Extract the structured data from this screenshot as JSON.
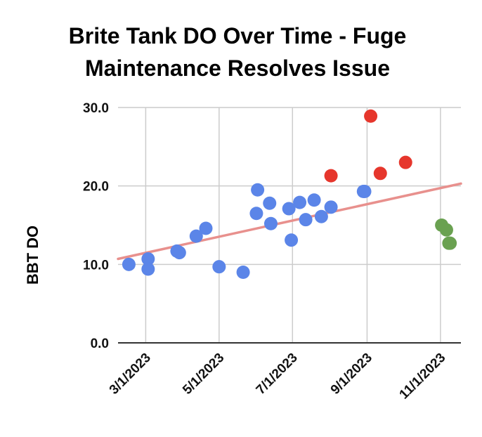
{
  "chart_data": {
    "type": "scatter",
    "title_lines": [
      "Brite Tank DO Over Time - Fuge",
      "Maintenance Resolves Issue"
    ],
    "xlabel": "",
    "ylabel": "BBT DO",
    "ylim": [
      0,
      30
    ],
    "y_ticks": [
      "0.0",
      "10.0",
      "20.0",
      "30.0"
    ],
    "xlim": [
      "2023-02-06",
      "2023-11-18"
    ],
    "x_ticks": [
      {
        "date": "2023-03-01",
        "label": "3/1/2023"
      },
      {
        "date": "2023-05-01",
        "label": "5/1/2023"
      },
      {
        "date": "2023-07-01",
        "label": "7/1/2023"
      },
      {
        "date": "2023-09-01",
        "label": "9/1/2023"
      },
      {
        "date": "2023-11-01",
        "label": "11/1/2023"
      }
    ],
    "grid": true,
    "legend": "none",
    "trendline": {
      "color": "#e8908d",
      "start": {
        "x": "2023-02-06",
        "y": 10.7
      },
      "end": {
        "x": "2023-11-18",
        "y": 20.3
      }
    },
    "series": [
      {
        "color": "#5b85e8",
        "points": [
          {
            "x": "2023-02-15",
            "y": 10.0
          },
          {
            "x": "2023-03-03",
            "y": 10.7
          },
          {
            "x": "2023-03-03",
            "y": 9.4
          },
          {
            "x": "2023-03-27",
            "y": 11.7
          },
          {
            "x": "2023-03-29",
            "y": 11.5
          },
          {
            "x": "2023-04-12",
            "y": 13.6
          },
          {
            "x": "2023-04-20",
            "y": 14.6
          },
          {
            "x": "2023-05-01",
            "y": 9.7
          },
          {
            "x": "2023-05-21",
            "y": 9.0
          },
          {
            "x": "2023-06-01",
            "y": 16.5
          },
          {
            "x": "2023-06-02",
            "y": 19.5
          },
          {
            "x": "2023-06-12",
            "y": 17.8
          },
          {
            "x": "2023-06-13",
            "y": 15.2
          },
          {
            "x": "2023-06-28",
            "y": 17.1
          },
          {
            "x": "2023-06-30",
            "y": 13.1
          },
          {
            "x": "2023-07-07",
            "y": 17.9
          },
          {
            "x": "2023-07-12",
            "y": 15.7
          },
          {
            "x": "2023-07-19",
            "y": 18.2
          },
          {
            "x": "2023-07-25",
            "y": 16.1
          },
          {
            "x": "2023-08-02",
            "y": 17.3
          },
          {
            "x": "2023-08-29",
            "y": 19.3
          },
          {
            "x": "2023-08-30",
            "y": 19.3
          }
        ]
      },
      {
        "color": "#e6362c",
        "points": [
          {
            "x": "2023-08-02",
            "y": 21.3
          },
          {
            "x": "2023-09-04",
            "y": 28.9
          },
          {
            "x": "2023-09-12",
            "y": 21.6
          },
          {
            "x": "2023-10-03",
            "y": 23.0
          }
        ]
      },
      {
        "color": "#6aa151",
        "points": [
          {
            "x": "2023-11-02",
            "y": 15.0
          },
          {
            "x": "2023-11-06",
            "y": 14.4
          },
          {
            "x": "2023-11-08",
            "y": 12.7
          },
          {
            "x": "2023-11-09",
            "y": 12.7
          }
        ]
      }
    ]
  }
}
